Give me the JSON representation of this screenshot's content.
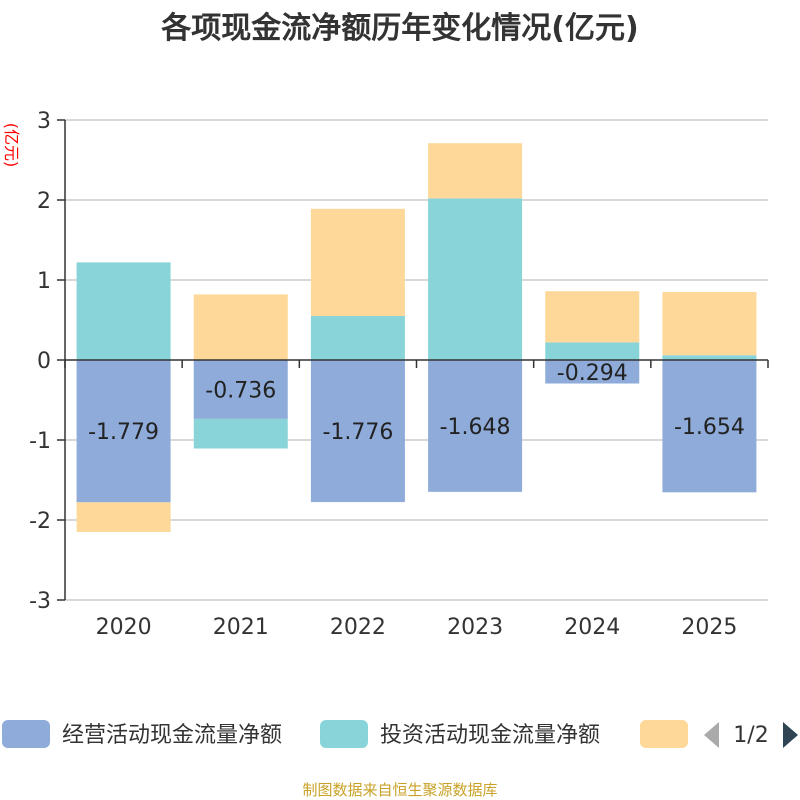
{
  "chart_data": {
    "type": "bar",
    "stacked": true,
    "title": "各项现金流净额历年变化情况(亿元)",
    "ylabel": "(亿元)",
    "xlabel": "",
    "ylim": [
      -3,
      3
    ],
    "yticks": [
      -3,
      -2,
      -1,
      0,
      1,
      2,
      3
    ],
    "categories": [
      "2020",
      "2021",
      "2022",
      "2023",
      "2024",
      "2025"
    ],
    "series": [
      {
        "name": "经营活动现金流量净额",
        "color": "#8eabd9",
        "values": [
          -1.779,
          -0.736,
          -1.776,
          -1.648,
          -0.294,
          -1.654
        ],
        "labels": [
          "-1.779",
          "-0.736",
          "-1.776",
          "-1.648",
          "-0.294",
          "-1.654"
        ]
      },
      {
        "name": "投资活动现金流量净额",
        "color": "#88d4d8",
        "values": [
          1.22,
          -0.37,
          0.55,
          2.02,
          0.22,
          0.06
        ]
      },
      {
        "name": "",
        "color": "#fdd898",
        "values": [
          -0.37,
          0.82,
          1.34,
          0.69,
          0.64,
          0.79
        ]
      }
    ],
    "legend": {
      "position": "bottom",
      "page": "1/2"
    },
    "source": "制图数据来自恒生聚源数据库",
    "grid": true
  }
}
